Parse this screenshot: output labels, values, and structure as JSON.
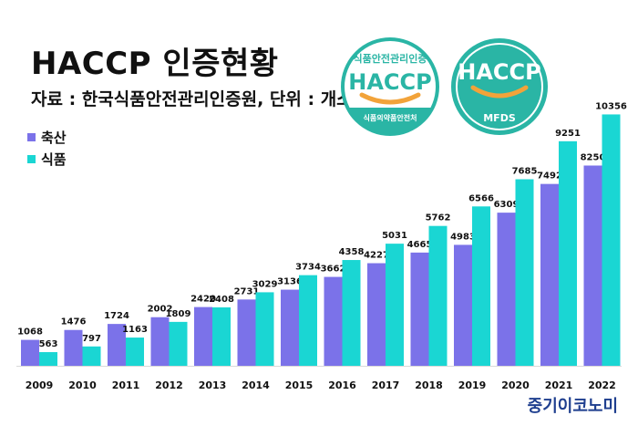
{
  "title": "HACCP 인증현황",
  "subtitle": "자료 : 한국식품안전관리인증원, 단위 : 개소",
  "brand": "중기이코노미",
  "logos": {
    "left": {
      "top_text": "식품안전관리인증",
      "main_text": "HACCP",
      "bottom_text": "식품의약품안전처"
    },
    "right": {
      "main_text": "HACCP",
      "bottom_text": "MFDS"
    }
  },
  "colors": {
    "series1": "#7b72e9",
    "series2": "#1ad6d3",
    "logo_green": "#2ab5a5",
    "logo_orange": "#f2a33a",
    "brand": "#1f3f8f"
  },
  "chart_data": {
    "type": "bar",
    "categories": [
      "2009",
      "2010",
      "2011",
      "2012",
      "2013",
      "2014",
      "2015",
      "2016",
      "2017",
      "2018",
      "2019",
      "2020",
      "2021",
      "2022"
    ],
    "series": [
      {
        "name": "축산",
        "values": [
          1068,
          1476,
          1724,
          2002,
          2420,
          2731,
          3136,
          3662,
          4227,
          4665,
          4983,
          6309,
          7492,
          8250
        ]
      },
      {
        "name": "식품",
        "values": [
          563,
          797,
          1163,
          1809,
          2408,
          3029,
          3734,
          4358,
          5031,
          5762,
          6566,
          7685,
          9251,
          10356
        ]
      }
    ],
    "title": "HACCP 인증현황",
    "xlabel": "",
    "ylabel": "",
    "ylim": [
      0,
      11500
    ],
    "grid": false,
    "legend": "top-left"
  }
}
